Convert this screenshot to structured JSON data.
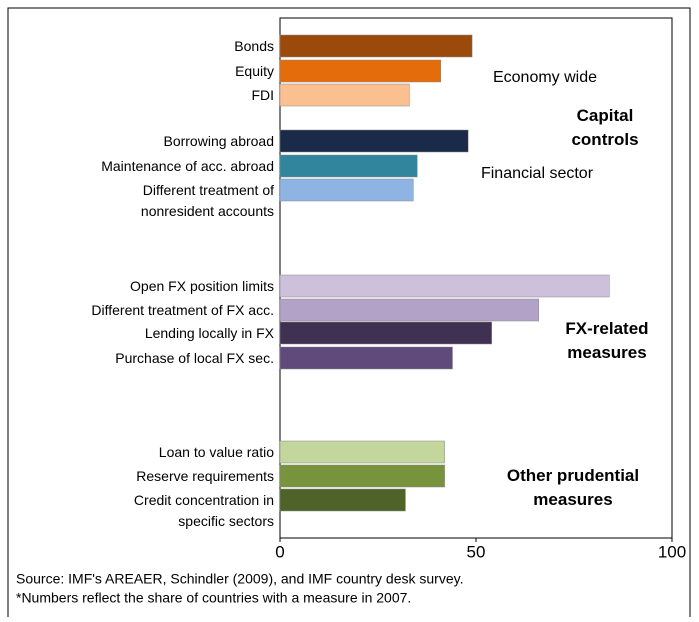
{
  "chart_data": {
    "type": "barh",
    "categories": [
      "Bonds",
      "Equity",
      "FDI",
      "Borrowing abroad",
      "Maintenance of acc. abroad",
      "Different treatment of\nnonresident accounts",
      "Open FX position limits",
      "Different treatment of FX acc.",
      "Lending locally in FX",
      "Purchase of local FX sec.",
      "Loan to value ratio",
      "Reserve requirements",
      "Credit concentration in\nspecific sectors"
    ],
    "values": [
      49,
      41,
      33,
      48,
      35,
      34,
      84,
      66,
      54,
      44,
      42,
      42,
      32
    ],
    "colors": [
      "#9c4a0c",
      "#e46c0a",
      "#fac090",
      "#1a2a48",
      "#31859c",
      "#8eb4e3",
      "#ccc0da",
      "#b3a2c7",
      "#403152",
      "#604a7b",
      "#c3d69b",
      "#77933c",
      "#4f6228"
    ],
    "xlim": [
      0,
      100
    ],
    "xticks": [
      0,
      50,
      100
    ],
    "annotations": [
      "Economy wide",
      "Capital\ncontrols",
      "Financial sector",
      "FX-related\nmeasures",
      "Other prudential\nmeasures"
    ],
    "source": [
      "Source: IMF's AREAER, Schindler (2009), and IMF country desk survey.",
      "*Numbers reflect the share of countries with a measure in 2007."
    ]
  }
}
